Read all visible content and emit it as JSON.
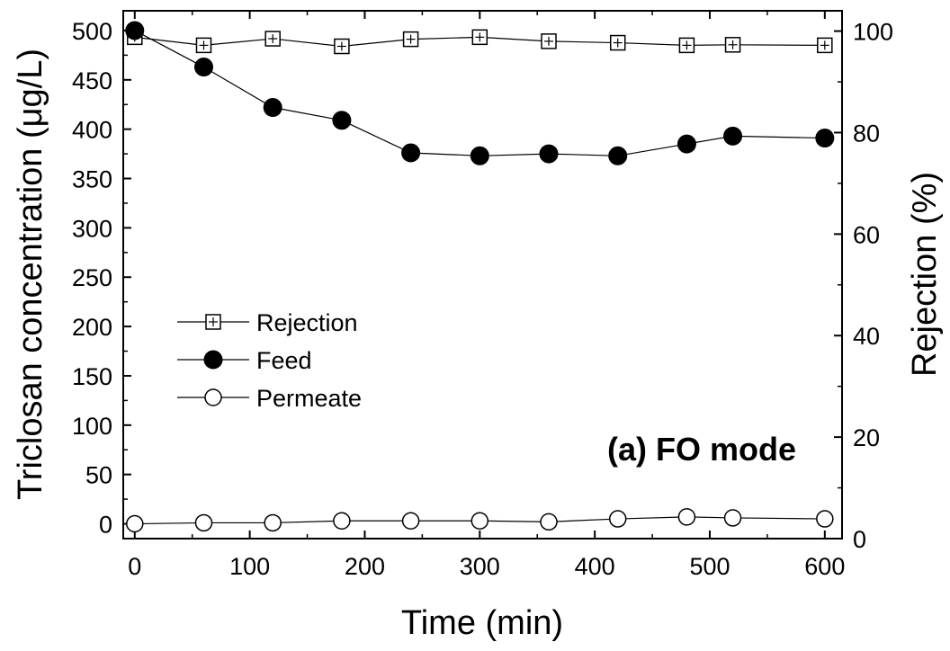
{
  "chart_data": {
    "type": "line",
    "annotation": "(a) FO mode",
    "xlabel": "Time (min)",
    "ylabel": "Triclosan concentration (μg/L)",
    "y2label": "Rejection (%)",
    "xlim": [
      -10,
      615
    ],
    "ylim": [
      -15,
      520
    ],
    "y2lim": [
      0,
      104
    ],
    "xticks": [
      0,
      100,
      200,
      300,
      400,
      500,
      600
    ],
    "yticks": [
      0,
      50,
      100,
      150,
      200,
      250,
      300,
      350,
      400,
      450,
      500
    ],
    "y2ticks": [
      0,
      20,
      40,
      60,
      80,
      100
    ],
    "grid": false,
    "legend_position": "center-left",
    "series": [
      {
        "name": "Rejection",
        "axis": "right",
        "marker": "open-square",
        "x": [
          0,
          60,
          120,
          180,
          240,
          300,
          360,
          420,
          480,
          520,
          600
        ],
        "y": [
          98.8,
          97.2,
          98.5,
          97.0,
          98.4,
          98.8,
          98.0,
          97.7,
          97.2,
          97.3,
          97.2
        ]
      },
      {
        "name": "Feed",
        "axis": "left",
        "marker": "filled-circle",
        "x": [
          0,
          60,
          120,
          180,
          240,
          300,
          360,
          420,
          480,
          520,
          600
        ],
        "y": [
          500,
          463,
          422,
          409,
          376,
          373,
          375,
          373,
          385,
          393,
          391
        ]
      },
      {
        "name": "Permeate",
        "axis": "left",
        "marker": "open-circle",
        "x": [
          0,
          60,
          120,
          180,
          240,
          300,
          360,
          420,
          480,
          520,
          600
        ],
        "y": [
          0,
          1,
          1,
          3,
          3,
          3,
          2,
          5,
          7,
          6,
          5
        ]
      }
    ]
  }
}
